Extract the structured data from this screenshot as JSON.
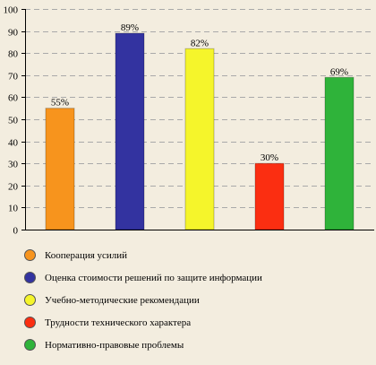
{
  "chart_data": {
    "type": "bar",
    "ylim": [
      0,
      100
    ],
    "yticks": [
      0,
      10,
      20,
      30,
      40,
      50,
      60,
      70,
      80,
      90,
      100
    ],
    "grid": true,
    "legend_position": "bottom",
    "series": [
      {
        "name": "Кооперация усилий",
        "value": 55,
        "label": "55%",
        "color": "#f7941d"
      },
      {
        "name": "Оценка стоимости решений по защите информации",
        "value": 89,
        "label": "89%",
        "color": "#3333a0"
      },
      {
        "name": "Учебно-методические рекомендации",
        "value": 82,
        "label": "82%",
        "color": "#f5f52b"
      },
      {
        "name": "Трудности технического характера",
        "value": 30,
        "label": "30%",
        "color": "#fb2e11"
      },
      {
        "name": "Нормативно-правовые проблемы",
        "value": 69,
        "label": "69%",
        "color": "#2fb33a"
      }
    ]
  }
}
